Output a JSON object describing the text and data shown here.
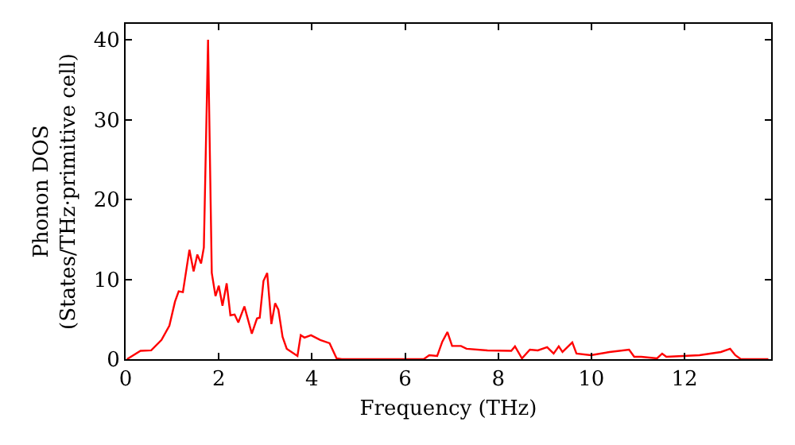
{
  "chart_data": {
    "type": "line",
    "xlabel": "Frequency (THz)",
    "ylabel": "Phonon DOS\n(States/THz·primitive cell)",
    "xlim": [
      0,
      13.86
    ],
    "ylim": [
      0,
      42
    ],
    "xticks": [
      0,
      2,
      4,
      6,
      8,
      10,
      12
    ],
    "yticks": [
      0,
      10,
      20,
      30,
      40
    ],
    "grid": false,
    "legend": false,
    "marker": "none",
    "line_style": "solid",
    "series": [
      {
        "color": "#ff0000",
        "x": [
          0.03,
          0.32,
          0.55,
          0.77,
          0.94,
          1.06,
          1.14,
          1.23,
          1.37,
          1.46,
          1.54,
          1.62,
          1.68,
          1.77,
          1.85,
          1.93,
          2.0,
          2.08,
          2.17,
          2.25,
          2.34,
          2.42,
          2.55,
          2.71,
          2.82,
          2.88,
          2.96,
          3.04,
          3.13,
          3.21,
          3.28,
          3.37,
          3.46,
          3.69,
          3.76,
          3.84,
          3.98,
          4.18,
          4.38,
          4.53,
          4.64,
          6.4,
          6.52,
          6.69,
          6.8,
          6.91,
          7.01,
          7.2,
          7.32,
          7.77,
          8.28,
          8.36,
          8.51,
          8.68,
          8.85,
          9.05,
          9.19,
          9.3,
          9.38,
          9.59,
          9.68,
          9.99,
          10.39,
          10.81,
          10.92,
          11.07,
          11.41,
          11.52,
          11.61,
          12.32,
          12.78,
          12.98,
          13.09,
          13.21,
          13.8
        ],
        "values": [
          0,
          1.05,
          1.1,
          2.4,
          4.2,
          7.2,
          8.5,
          8.4,
          13.7,
          11,
          13.1,
          12,
          14,
          40,
          10.8,
          7.9,
          9.2,
          6.7,
          9.5,
          5.5,
          5.6,
          4.6,
          6.6,
          3.2,
          5.1,
          5.2,
          9.8,
          10.8,
          4.4,
          7.0,
          6.2,
          2.8,
          1.3,
          0.4,
          3.0,
          2.7,
          3.0,
          2.4,
          2.0,
          0.1,
          0,
          0,
          0.5,
          0.4,
          2.2,
          3.4,
          1.65,
          1.65,
          1.3,
          1.1,
          1.05,
          1.6,
          0.1,
          1.2,
          1.1,
          1.5,
          0.7,
          1.6,
          0.9,
          2.1,
          0.7,
          0.5,
          0.9,
          1.2,
          0.3,
          0.3,
          0.1,
          0.7,
          0.3,
          0.5,
          0.9,
          1.3,
          0.5,
          0,
          0
        ]
      }
    ]
  }
}
